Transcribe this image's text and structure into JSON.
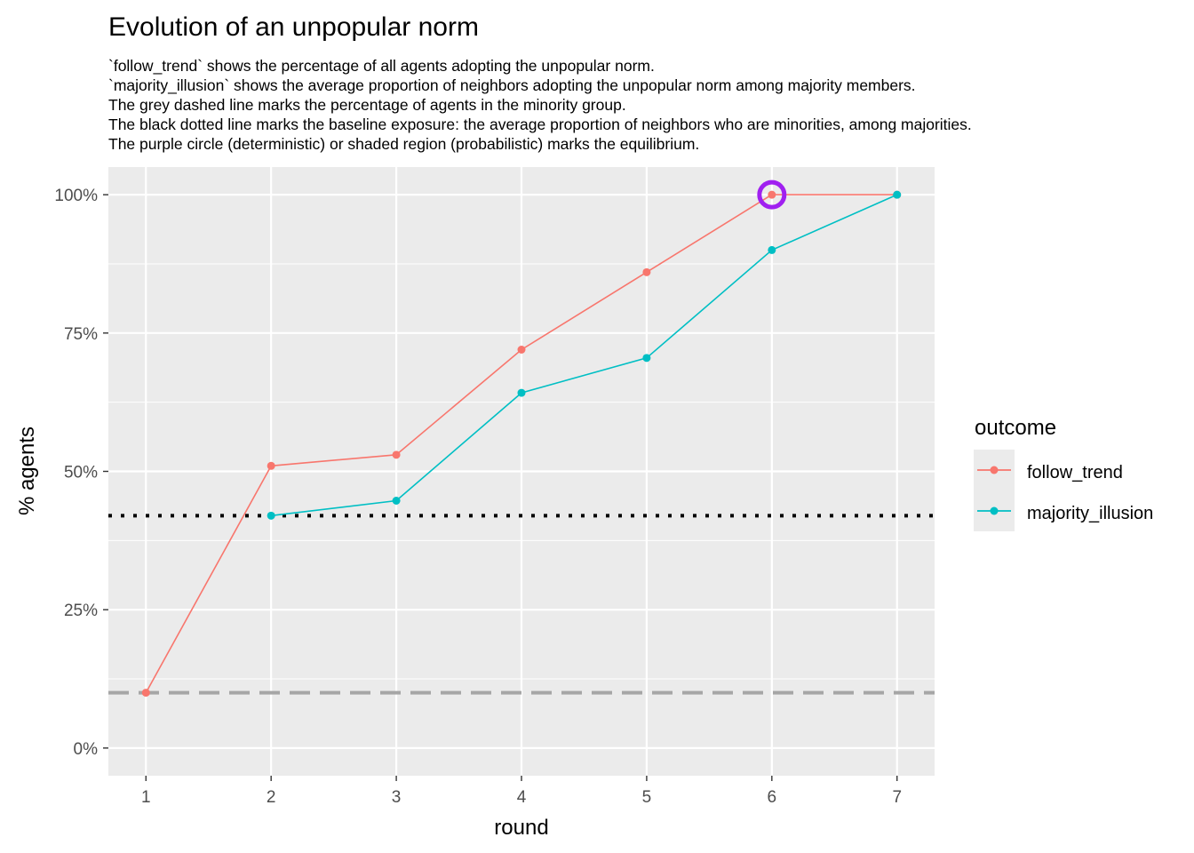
{
  "chart_data": {
    "type": "line",
    "title": "Evolution of an unpopular norm",
    "subtitle_lines": [
      "`follow_trend` shows the percentage of all agents adopting the unpopular norm.",
      "`majority_illusion` shows the average proportion of neighbors adopting the unpopular norm among majority members.",
      "The grey dashed line marks the percentage of agents in the minority group.",
      "The black dotted line marks the baseline exposure: the average proportion of neighbors who are minorities, among majorities.",
      "The purple circle (deterministic) or shaded region (probabilistic) marks the equilibrium."
    ],
    "xlabel": "round",
    "ylabel": "% agents",
    "x_ticks": [
      1,
      2,
      3,
      4,
      5,
      6,
      7
    ],
    "x_tick_labels": [
      "1",
      "2",
      "3",
      "4",
      "5",
      "6",
      "7"
    ],
    "xlim": [
      0.7,
      7.3
    ],
    "y_ticks": [
      0,
      0.25,
      0.5,
      0.75,
      1.0
    ],
    "y_tick_labels": [
      "0%",
      "25%",
      "50%",
      "75%",
      "100%"
    ],
    "ylim": [
      -0.05,
      1.05
    ],
    "grid": true,
    "legend": {
      "title": "outcome",
      "position": "right"
    },
    "series": [
      {
        "name": "follow_trend",
        "color": "#F8766D",
        "x": [
          1,
          2,
          3,
          4,
          5,
          6,
          7
        ],
        "values": [
          0.1,
          0.51,
          0.53,
          0.72,
          0.86,
          1.0,
          1.0
        ]
      },
      {
        "name": "majority_illusion",
        "color": "#00BFC4",
        "x": [
          2,
          3,
          4,
          5,
          6,
          7
        ],
        "values": [
          0.42,
          0.447,
          0.642,
          0.705,
          0.9,
          1.0
        ]
      }
    ],
    "reference_lines": [
      {
        "style": "dashed",
        "color": "#A6A6A6",
        "y": 0.1
      },
      {
        "style": "dotted",
        "color": "#000000",
        "y": 0.42
      }
    ],
    "equilibrium_marker": {
      "shape": "circle",
      "color": "#A020F0",
      "x": 6,
      "y": 1.0
    }
  }
}
